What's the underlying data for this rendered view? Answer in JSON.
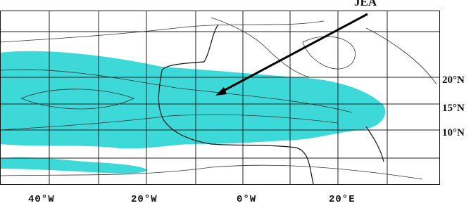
{
  "annotation": "JEA",
  "latitude_labels": [
    "20°N",
    "15°N",
    "10°N"
  ],
  "longitude_labels": [
    "40°W",
    "20°W",
    "0°W",
    "20°E"
  ]
}
